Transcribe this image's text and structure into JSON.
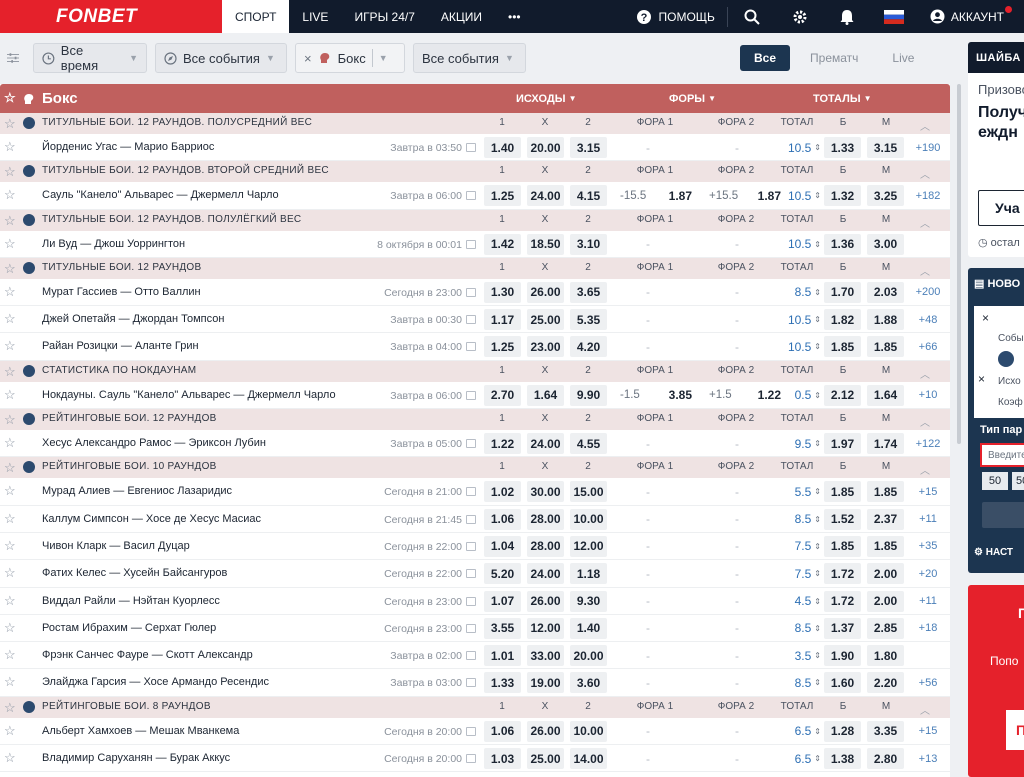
{
  "brand": {
    "logo": "FONBET",
    "accent": "#e5212b",
    "header_bg": "#111b2c",
    "sport_header_bg": "#c0605e",
    "odds_link": "#2d6fb4"
  },
  "nav": {
    "items": [
      "СПОРТ",
      "LIVE",
      "ИГРЫ 24/7",
      "АКЦИИ"
    ],
    "more": "•••",
    "help": "ПОМОЩЬ",
    "account": "АККАУНТ"
  },
  "filters": {
    "time": "Все время",
    "events1": "Все события",
    "sport": "Бокс",
    "events2": "Все события",
    "toggle": [
      "Все",
      "Прематч",
      "Live"
    ]
  },
  "sport": {
    "title": "Бокс",
    "groups": [
      "ИСХОДЫ",
      "ФОРЫ",
      "ТОТАЛЫ"
    ]
  },
  "cols": {
    "c1": "1",
    "cx": "X",
    "c2": "2",
    "f1": "ФОРА 1",
    "f2": "ФОРА 2",
    "tot": "ТОТАЛ",
    "b": "Б",
    "m": "М"
  },
  "rows": [
    {
      "t": "cat",
      "title": "Титульные бои. 12 раундов. Полусредний вес"
    },
    {
      "t": "ev",
      "name": "Йорденис Угас — Марио Барриос",
      "time": "Завтра в 03:50",
      "o1": "1.40",
      "ox": "20.00",
      "o2": "3.15",
      "f1": "-",
      "f1o": "",
      "f2": "-",
      "f2o": "",
      "tot": "10.5",
      "b": "1.33",
      "m": "3.15",
      "more": "+190"
    },
    {
      "t": "cat",
      "title": "Титульные бои. 12 раундов. Второй средний вес"
    },
    {
      "t": "ev",
      "name": "Сауль \"Канело\" Альварес — Джермелл Чарло",
      "time": "Завтра в 06:00",
      "o1": "1.25",
      "ox": "24.00",
      "o2": "4.15",
      "f1": "-15.5",
      "f1o": "1.87",
      "f2": "+15.5",
      "f2o": "1.87",
      "tot": "10.5",
      "b": "1.32",
      "m": "3.25",
      "more": "+182"
    },
    {
      "t": "cat",
      "title": "Титульные бои. 12 раундов. Полулёгкий вес"
    },
    {
      "t": "ev",
      "name": "Ли Вуд — Джош Уоррингтон",
      "time": "8 октября в 00:01",
      "o1": "1.42",
      "ox": "18.50",
      "o2": "3.10",
      "f1": "-",
      "f1o": "",
      "f2": "-",
      "f2o": "",
      "tot": "10.5",
      "b": "1.36",
      "m": "3.00",
      "more": ""
    },
    {
      "t": "cat",
      "title": "Титульные бои. 12 раундов"
    },
    {
      "t": "ev",
      "name": "Мурат Гассиев — Отто Валлин",
      "time": "Сегодня в 23:00",
      "o1": "1.30",
      "ox": "26.00",
      "o2": "3.65",
      "f1": "-",
      "f1o": "",
      "f2": "-",
      "f2o": "",
      "tot": "8.5",
      "b": "1.70",
      "m": "2.03",
      "more": "+200"
    },
    {
      "t": "ev",
      "name": "Джей Опетайя — Джордан Томпсон",
      "time": "Завтра в 00:30",
      "o1": "1.17",
      "ox": "25.00",
      "o2": "5.35",
      "f1": "-",
      "f1o": "",
      "f2": "-",
      "f2o": "",
      "tot": "10.5",
      "b": "1.82",
      "m": "1.88",
      "more": "+48"
    },
    {
      "t": "ev",
      "name": "Райан Розицки — Аланте Грин",
      "time": "Завтра в 04:00",
      "o1": "1.25",
      "ox": "23.00",
      "o2": "4.20",
      "f1": "-",
      "f1o": "",
      "f2": "-",
      "f2o": "",
      "tot": "10.5",
      "b": "1.85",
      "m": "1.85",
      "more": "+66"
    },
    {
      "t": "cat",
      "title": "Статистика по нокдаунам"
    },
    {
      "t": "ev",
      "name": "Нокдауны. Сауль \"Канело\" Альварес — Джермелл Чарло",
      "time": "Завтра в 06:00",
      "o1": "2.70",
      "ox": "1.64",
      "o2": "9.90",
      "f1": "-1.5",
      "f1o": "3.85",
      "f2": "+1.5",
      "f2o": "1.22",
      "tot": "0.5",
      "b": "2.12",
      "m": "1.64",
      "more": "+10"
    },
    {
      "t": "cat",
      "title": "Рейтинговые бои. 12 раундов"
    },
    {
      "t": "ev",
      "name": "Хесус Александро Рамос — Эриксон Лубин",
      "time": "Завтра в 05:00",
      "o1": "1.22",
      "ox": "24.00",
      "o2": "4.55",
      "f1": "-",
      "f1o": "",
      "f2": "-",
      "f2o": "",
      "tot": "9.5",
      "b": "1.97",
      "m": "1.74",
      "more": "+122"
    },
    {
      "t": "cat",
      "title": "Рейтинговые бои. 10 раундов"
    },
    {
      "t": "ev",
      "name": "Мурад Алиев — Евгениос Лазаридис",
      "time": "Сегодня в 21:00",
      "o1": "1.02",
      "ox": "30.00",
      "o2": "15.00",
      "f1": "-",
      "f1o": "",
      "f2": "-",
      "f2o": "",
      "tot": "5.5",
      "b": "1.85",
      "m": "1.85",
      "more": "+15"
    },
    {
      "t": "ev",
      "name": "Каллум Симпсон — Хосе де Хесус Масиас",
      "time": "Сегодня в 21:45",
      "o1": "1.06",
      "ox": "28.00",
      "o2": "10.00",
      "f1": "-",
      "f1o": "",
      "f2": "-",
      "f2o": "",
      "tot": "8.5",
      "b": "1.52",
      "m": "2.37",
      "more": "+11"
    },
    {
      "t": "ev",
      "name": "Чивон Кларк — Васил Дуцар",
      "time": "Сегодня в 22:00",
      "o1": "1.04",
      "ox": "28.00",
      "o2": "12.00",
      "f1": "-",
      "f1o": "",
      "f2": "-",
      "f2o": "",
      "tot": "7.5",
      "b": "1.85",
      "m": "1.85",
      "more": "+35"
    },
    {
      "t": "ev",
      "name": "Фатих Келес — Хусейн Байсангуров",
      "time": "Сегодня в 22:00",
      "o1": "5.20",
      "ox": "24.00",
      "o2": "1.18",
      "f1": "-",
      "f1o": "",
      "f2": "-",
      "f2o": "",
      "tot": "7.5",
      "b": "1.72",
      "m": "2.00",
      "more": "+20"
    },
    {
      "t": "ev",
      "name": "Виддал Райли — Нэйтан Куорлесс",
      "time": "Сегодня в 23:00",
      "o1": "1.07",
      "ox": "26.00",
      "o2": "9.30",
      "f1": "-",
      "f1o": "",
      "f2": "-",
      "f2o": "",
      "tot": "4.5",
      "b": "1.72",
      "m": "2.00",
      "more": "+11"
    },
    {
      "t": "ev",
      "name": "Ростам Ибрахим — Серхат Гюлер",
      "time": "Сегодня в 23:00",
      "o1": "3.55",
      "ox": "12.00",
      "o2": "1.40",
      "f1": "-",
      "f1o": "",
      "f2": "-",
      "f2o": "",
      "tot": "8.5",
      "b": "1.37",
      "m": "2.85",
      "more": "+18"
    },
    {
      "t": "ev",
      "name": "Фрэнк Санчес Фауре — Скотт Александр",
      "time": "Завтра в 02:00",
      "o1": "1.01",
      "ox": "33.00",
      "o2": "20.00",
      "f1": "-",
      "f1o": "",
      "f2": "-",
      "f2o": "",
      "tot": "3.5",
      "b": "1.90",
      "m": "1.80",
      "more": ""
    },
    {
      "t": "ev",
      "name": "Элайджа Гарсия — Хосе Армандо Ресендис",
      "time": "Завтра в 03:00",
      "o1": "1.33",
      "ox": "19.00",
      "o2": "3.60",
      "f1": "-",
      "f1o": "",
      "f2": "-",
      "f2o": "",
      "tot": "8.5",
      "b": "1.60",
      "m": "2.20",
      "more": "+56"
    },
    {
      "t": "cat",
      "title": "Рейтинговые бои. 8 раундов"
    },
    {
      "t": "ev",
      "name": "Альберт Хамхоев — Мешак Мванкема",
      "time": "Сегодня в 20:00",
      "o1": "1.06",
      "ox": "26.00",
      "o2": "10.00",
      "f1": "-",
      "f1o": "",
      "f2": "-",
      "f2o": "",
      "tot": "6.5",
      "b": "1.28",
      "m": "3.35",
      "more": "+15"
    },
    {
      "t": "ev",
      "name": "Владимир Саруханян — Бурак Аккус",
      "time": "Сегодня в 20:00",
      "o1": "1.03",
      "ox": "25.00",
      "o2": "14.00",
      "f1": "-",
      "f1o": "",
      "f2": "-",
      "f2o": "",
      "tot": "6.5",
      "b": "1.38",
      "m": "2.80",
      "more": "+13"
    }
  ],
  "rail": {
    "p1_title": "ШАЙБА",
    "p1_line1": "Призово",
    "p1_line2": "Получ",
    "p1_line3": "еждн",
    "p1_btn": "Уча",
    "p1_foot": "остал",
    "p2_title": "НОВО",
    "p2_x": "×",
    "p2_l1": "Собы",
    "p2_l2": "Исхо",
    "p2_l3": "Коэф",
    "p2_type": "Тип пар",
    "p2_input": "Введите",
    "p2_c1": "50",
    "p2_c2": "50",
    "p2_foot": "НАСТ",
    "p3_l1": "П",
    "p3_l2": "Попо",
    "p3_l3": "П"
  }
}
